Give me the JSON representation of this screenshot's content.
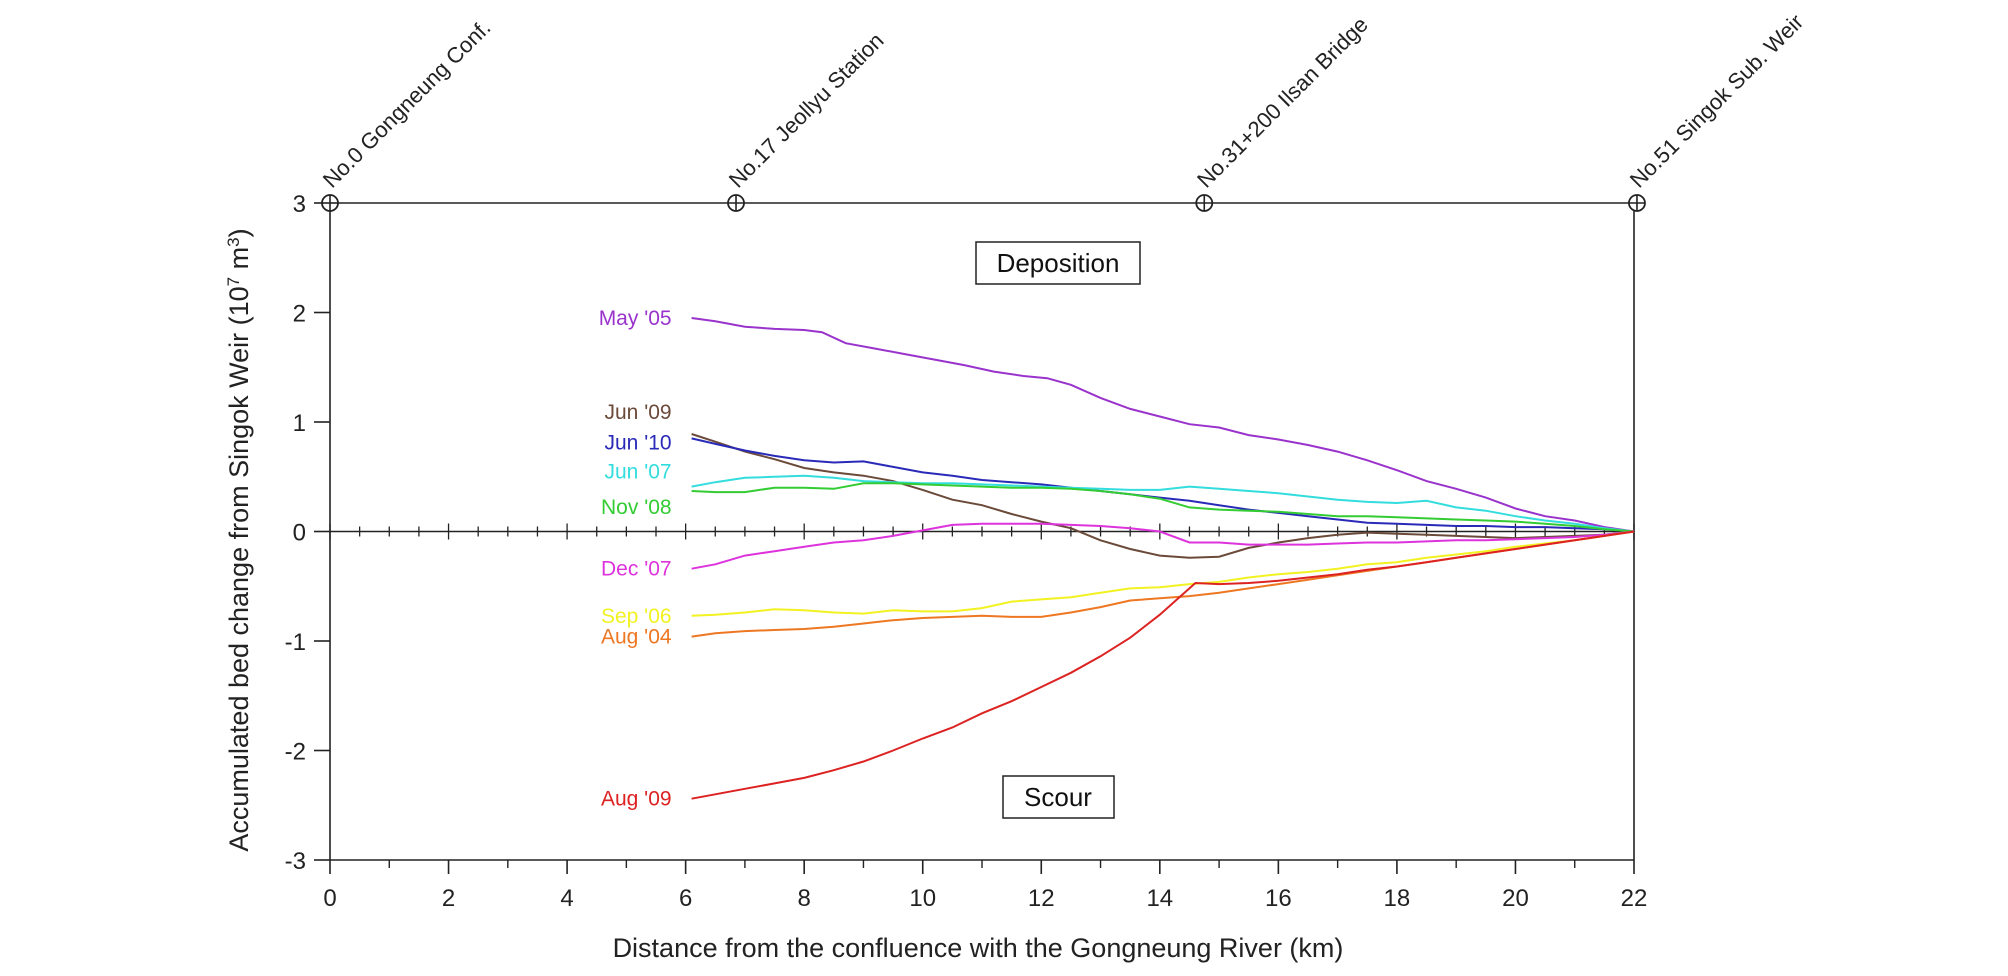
{
  "chart_data": {
    "type": "line",
    "xlabel": "Distance from the confluence with the Gongneung River (km)",
    "ylabel_prefix": "Accumulated bed change from Singok Weir (10",
    "ylabel_exp": "7",
    "ylabel_suffix": " m",
    "ylabel_unit_exp": "3",
    "ylabel_close": ")",
    "xlim": [
      0,
      22
    ],
    "ylim": [
      -3,
      3
    ],
    "x_ticks": [
      0,
      2,
      4,
      6,
      8,
      10,
      12,
      14,
      16,
      18,
      20,
      22
    ],
    "y_ticks": [
      3,
      2,
      1,
      0,
      -1,
      -2,
      -3
    ],
    "x_tick_labels": [
      "0",
      "2",
      "4",
      "6",
      "8",
      "10",
      "12",
      "14",
      "16",
      "18",
      "20",
      "22"
    ],
    "y_tick_labels": [
      "3",
      "2",
      "1",
      "0",
      "-1",
      "-2",
      "-3"
    ],
    "stations": [
      {
        "name": "No.0 Gongneung Conf.",
        "x": 0
      },
      {
        "name": "No.17 Jeollyu Station",
        "x": 6.85
      },
      {
        "name": "No.31+200 Ilsan Bridge",
        "x": 14.75
      },
      {
        "name": "No.51 Singok Sub. Weir",
        "x": 22.05
      }
    ],
    "annotations": {
      "deposition": "Deposition",
      "scour": "Scour"
    },
    "series": [
      {
        "name": "May '05",
        "color": "#9933cc",
        "x": [
          6.1,
          6.5,
          7,
          7.5,
          8,
          8.3,
          8.7,
          9.2,
          9.7,
          10.2,
          10.7,
          11.2,
          11.7,
          12.1,
          12.5,
          13,
          13.5,
          14,
          14.5,
          15,
          15.5,
          16,
          16.5,
          17,
          17.5,
          18,
          18.5,
          19,
          19.5,
          20,
          20.5,
          21,
          21.5,
          22
        ],
        "y": [
          1.95,
          1.92,
          1.87,
          1.85,
          1.84,
          1.82,
          1.72,
          1.67,
          1.62,
          1.57,
          1.52,
          1.46,
          1.42,
          1.4,
          1.34,
          1.22,
          1.12,
          1.05,
          0.98,
          0.95,
          0.88,
          0.84,
          0.79,
          0.73,
          0.65,
          0.56,
          0.46,
          0.39,
          0.31,
          0.21,
          0.14,
          0.1,
          0.04,
          0.0
        ]
      },
      {
        "name": "Jun '09",
        "color": "#6b4a3a",
        "x": [
          6.1,
          6.5,
          7,
          7.5,
          8,
          8.5,
          9,
          9.5,
          10,
          10.5,
          11,
          11.5,
          12,
          12.5,
          13,
          13.5,
          14,
          14.5,
          15,
          15.5,
          16,
          16.5,
          17,
          17.5,
          18,
          18.5,
          19,
          19.5,
          20,
          20.5,
          21,
          21.5,
          22
        ],
        "y": [
          0.89,
          0.82,
          0.73,
          0.66,
          0.58,
          0.54,
          0.51,
          0.46,
          0.38,
          0.29,
          0.24,
          0.16,
          0.09,
          0.03,
          -0.08,
          -0.16,
          -0.22,
          -0.24,
          -0.23,
          -0.15,
          -0.1,
          -0.06,
          -0.03,
          -0.01,
          -0.02,
          -0.03,
          -0.04,
          -0.05,
          -0.06,
          -0.05,
          -0.04,
          -0.03,
          0.0
        ]
      },
      {
        "name": "Jun '10",
        "color": "#2a2ab8",
        "x": [
          6.1,
          6.5,
          7,
          7.5,
          8,
          8.5,
          9,
          9.5,
          10,
          10.5,
          11,
          11.5,
          12,
          12.5,
          13,
          13.5,
          14,
          14.5,
          15,
          15.5,
          16,
          16.5,
          17,
          17.5,
          18,
          18.5,
          19,
          19.5,
          20,
          20.5,
          21,
          21.5,
          22
        ],
        "y": [
          0.85,
          0.8,
          0.74,
          0.69,
          0.65,
          0.63,
          0.64,
          0.59,
          0.54,
          0.51,
          0.47,
          0.45,
          0.43,
          0.4,
          0.37,
          0.34,
          0.31,
          0.28,
          0.24,
          0.2,
          0.17,
          0.14,
          0.11,
          0.08,
          0.07,
          0.06,
          0.05,
          0.05,
          0.04,
          0.04,
          0.03,
          0.02,
          0.0
        ]
      },
      {
        "name": "Jun '07",
        "color": "#33dddd",
        "x": [
          6.1,
          6.5,
          7,
          7.5,
          8,
          8.5,
          9,
          9.5,
          10,
          10.5,
          11,
          11.5,
          12,
          12.5,
          13,
          13.5,
          14,
          14.5,
          15,
          15.5,
          16,
          16.5,
          17,
          17.5,
          18,
          18.5,
          19,
          19.5,
          20,
          20.5,
          21,
          21.5,
          22
        ],
        "y": [
          0.41,
          0.45,
          0.49,
          0.5,
          0.51,
          0.49,
          0.46,
          0.45,
          0.44,
          0.44,
          0.43,
          0.42,
          0.41,
          0.4,
          0.39,
          0.38,
          0.38,
          0.41,
          0.39,
          0.37,
          0.35,
          0.32,
          0.29,
          0.27,
          0.26,
          0.28,
          0.22,
          0.19,
          0.14,
          0.1,
          0.07,
          0.03,
          0.0
        ]
      },
      {
        "name": "Nov '08",
        "color": "#33cc33",
        "x": [
          6.1,
          6.5,
          7,
          7.5,
          8,
          8.5,
          9,
          9.5,
          10,
          10.5,
          11,
          11.5,
          12,
          12.5,
          13,
          13.5,
          14,
          14.5,
          15,
          15.5,
          16,
          16.5,
          17,
          17.5,
          18,
          18.5,
          19,
          19.5,
          20,
          20.5,
          21,
          21.5,
          22
        ],
        "y": [
          0.37,
          0.36,
          0.36,
          0.4,
          0.4,
          0.39,
          0.44,
          0.44,
          0.43,
          0.42,
          0.41,
          0.4,
          0.4,
          0.39,
          0.37,
          0.34,
          0.3,
          0.22,
          0.2,
          0.19,
          0.18,
          0.16,
          0.14,
          0.14,
          0.13,
          0.12,
          0.11,
          0.1,
          0.09,
          0.07,
          0.05,
          0.02,
          0.0
        ]
      },
      {
        "name": "Dec '07",
        "color": "#dd33dd",
        "x": [
          6.1,
          6.5,
          7,
          7.5,
          8,
          8.5,
          9,
          9.5,
          10,
          10.5,
          11,
          11.5,
          12,
          12.5,
          13,
          13.5,
          14,
          14.5,
          15,
          15.5,
          16,
          16.5,
          17,
          17.5,
          18,
          18.5,
          19,
          19.5,
          20,
          20.5,
          21,
          21.5,
          22
        ],
        "y": [
          -0.34,
          -0.3,
          -0.22,
          -0.18,
          -0.14,
          -0.1,
          -0.08,
          -0.04,
          0.01,
          0.06,
          0.07,
          0.07,
          0.07,
          0.06,
          0.05,
          0.03,
          0.0,
          -0.1,
          -0.1,
          -0.12,
          -0.12,
          -0.12,
          -0.11,
          -0.1,
          -0.1,
          -0.09,
          -0.08,
          -0.08,
          -0.07,
          -0.06,
          -0.05,
          -0.03,
          0.0
        ]
      },
      {
        "name": "Sep '06",
        "color": "#f2f222",
        "x": [
          6.1,
          6.5,
          7,
          7.5,
          8,
          8.5,
          9,
          9.5,
          10,
          10.5,
          11,
          11.5,
          12,
          12.5,
          13,
          13.5,
          14,
          14.5,
          15,
          15.5,
          16,
          16.5,
          17,
          17.5,
          18,
          18.5,
          19,
          19.5,
          20,
          20.5,
          21,
          21.5,
          22
        ],
        "y": [
          -0.77,
          -0.76,
          -0.74,
          -0.71,
          -0.72,
          -0.74,
          -0.75,
          -0.72,
          -0.73,
          -0.73,
          -0.7,
          -0.64,
          -0.62,
          -0.6,
          -0.56,
          -0.52,
          -0.51,
          -0.48,
          -0.46,
          -0.42,
          -0.39,
          -0.37,
          -0.34,
          -0.3,
          -0.28,
          -0.24,
          -0.21,
          -0.18,
          -0.14,
          -0.11,
          -0.08,
          -0.04,
          0.0
        ]
      },
      {
        "name": "Aug '04",
        "color": "#ee7722",
        "x": [
          6.1,
          6.5,
          7,
          7.5,
          8,
          8.5,
          9,
          9.5,
          10,
          10.5,
          11,
          11.5,
          12,
          12.5,
          13,
          13.5,
          14,
          14.5,
          15,
          15.5,
          16,
          16.5,
          17,
          17.5,
          18,
          18.5,
          19,
          19.5,
          20,
          20.5,
          21,
          21.5,
          22
        ],
        "y": [
          -0.96,
          -0.93,
          -0.91,
          -0.9,
          -0.89,
          -0.87,
          -0.84,
          -0.81,
          -0.79,
          -0.78,
          -0.77,
          -0.78,
          -0.78,
          -0.74,
          -0.69,
          -0.63,
          -0.61,
          -0.59,
          -0.56,
          -0.52,
          -0.48,
          -0.44,
          -0.4,
          -0.36,
          -0.32,
          -0.28,
          -0.24,
          -0.2,
          -0.16,
          -0.12,
          -0.08,
          -0.04,
          0.0
        ]
      },
      {
        "name": "Aug '09",
        "color": "#dd2222",
        "x": [
          6.1,
          6.5,
          7,
          7.5,
          8,
          8.5,
          9,
          9.5,
          10,
          10.5,
          11,
          11.5,
          12,
          12.5,
          13,
          13.5,
          14,
          14.6,
          15,
          15.5,
          16,
          16.5,
          17,
          17.5,
          18,
          18.5,
          19,
          19.5,
          20,
          20.5,
          21,
          21.5,
          22
        ],
        "y": [
          -2.44,
          -2.4,
          -2.35,
          -2.3,
          -2.25,
          -2.18,
          -2.1,
          -2.0,
          -1.89,
          -1.79,
          -1.66,
          -1.55,
          -1.42,
          -1.29,
          -1.14,
          -0.97,
          -0.76,
          -0.47,
          -0.48,
          -0.47,
          -0.45,
          -0.42,
          -0.39,
          -0.35,
          -0.32,
          -0.28,
          -0.24,
          -0.2,
          -0.16,
          -0.12,
          -0.08,
          -0.04,
          0.0
        ]
      }
    ]
  }
}
